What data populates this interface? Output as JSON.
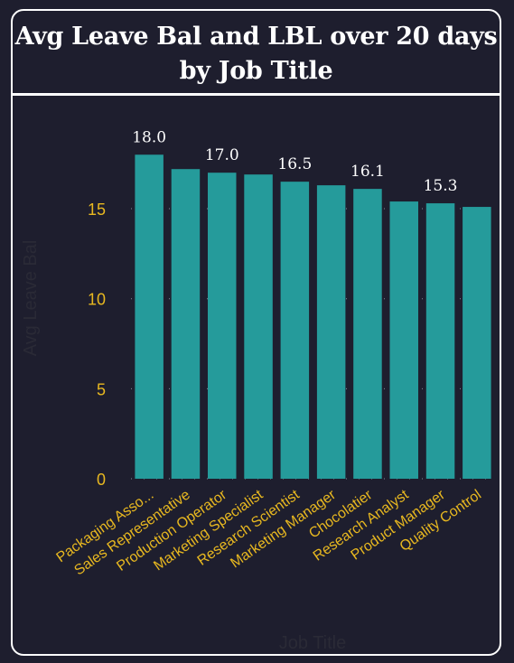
{
  "chart_data": {
    "type": "bar",
    "title_line1": "Avg Leave Bal and LBL over 20 days",
    "title_line2": "by Job Title",
    "xlabel": "Job Title",
    "ylabel": "Avg Leave Bal",
    "categories": [
      "Packaging Asso...",
      "Sales Representative",
      "Production Operator",
      "Marketing Specialist",
      "Research Scientist",
      "Marketing Manager",
      "Chocolatier",
      "Research Analyst",
      "Product Manager",
      "Quality Control"
    ],
    "values": [
      18.0,
      17.2,
      17.0,
      16.9,
      16.5,
      16.3,
      16.1,
      15.4,
      15.3,
      15.1
    ],
    "data_labels": [
      "18.0",
      "",
      "17.0",
      "",
      "16.5",
      "",
      "16.1",
      "",
      "15.3",
      ""
    ],
    "yticks": [
      0,
      5,
      10,
      15
    ],
    "ylim": [
      0,
      19
    ],
    "grid": "horizontal-dotted",
    "bar_color": "#259b9b",
    "tick_color": "#e8b820",
    "background": "#1e1e2e"
  }
}
